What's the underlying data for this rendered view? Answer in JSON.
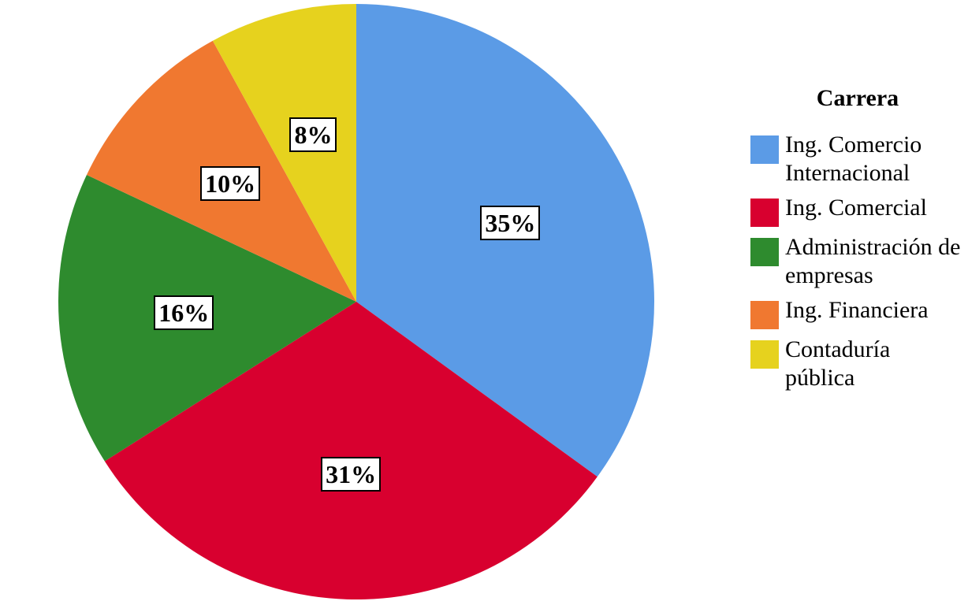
{
  "chart_data": {
    "type": "pie",
    "legend_title": "Carrera",
    "categories": [
      "Ing. Comercio Internacional",
      "Ing. Comercial",
      "Administración de empresas",
      "Ing. Financiera",
      "Contaduría pública"
    ],
    "values": [
      35,
      31,
      16,
      10,
      8
    ],
    "value_labels": [
      "35%",
      "31%",
      "16%",
      "10%",
      "8%"
    ],
    "colors": [
      "#5b9be6",
      "#d8002f",
      "#2e8b2e",
      "#f07830",
      "#e6d21e"
    ],
    "legend": "right"
  }
}
